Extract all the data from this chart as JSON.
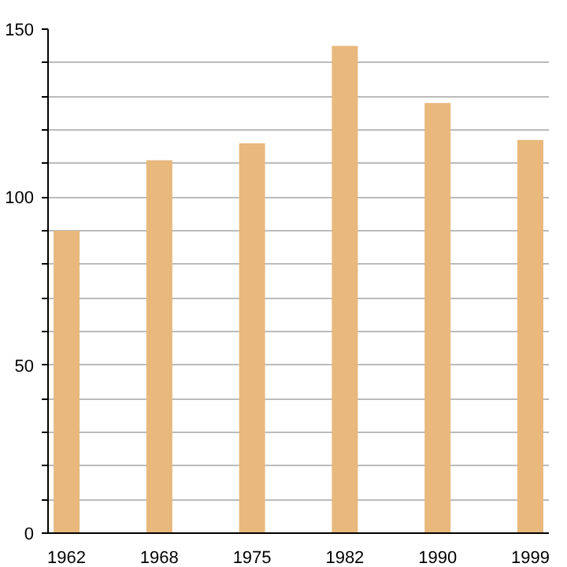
{
  "chart_data": {
    "type": "bar",
    "categories": [
      "1962",
      "1968",
      "1975",
      "1982",
      "1990",
      "1999"
    ],
    "values": [
      90,
      111,
      116,
      145,
      128,
      117
    ],
    "color": "#e8b87c",
    "ylim": [
      0,
      150
    ],
    "yticks": [
      0,
      {
        "value": 10,
        "label": null
      },
      {
        "value": 20,
        "label": null
      },
      {
        "value": 30,
        "label": null
      },
      {
        "value": 40,
        "label": null
      },
      50,
      {
        "value": 60,
        "label": null
      },
      {
        "value": 70,
        "label": null
      },
      {
        "value": 80,
        "label": null
      },
      {
        "value": 90,
        "label": null
      },
      100,
      {
        "value": 110,
        "label": null
      },
      {
        "value": 120,
        "label": null
      },
      {
        "value": 130,
        "label": null
      },
      {
        "value": 140,
        "label": null
      },
      150
    ],
    "grid": "y"
  }
}
